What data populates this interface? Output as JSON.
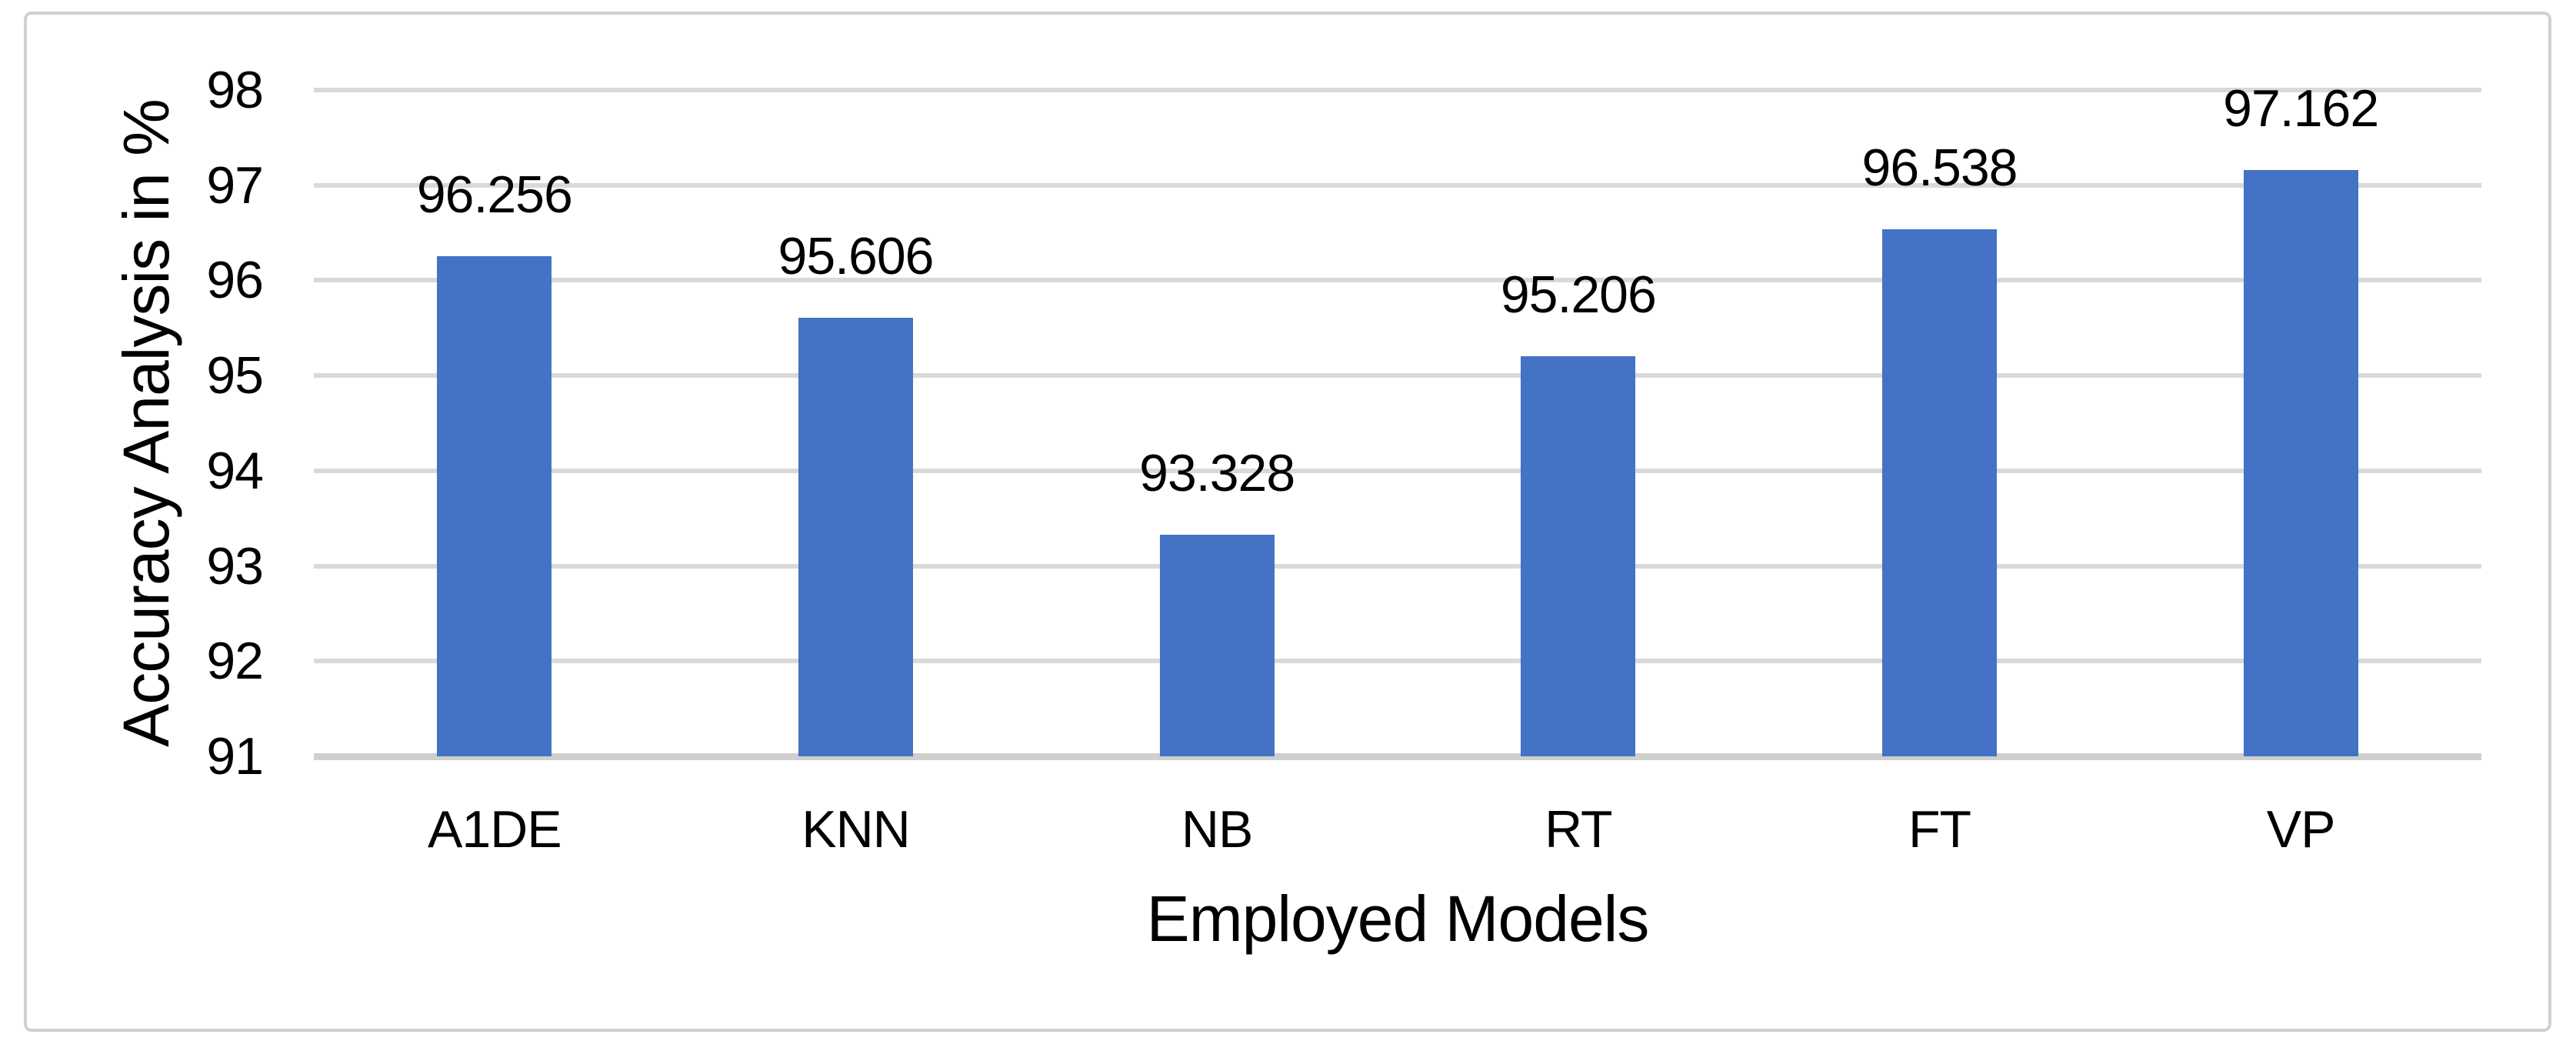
{
  "chart_data": {
    "type": "bar",
    "categories": [
      "A1DE",
      "KNN",
      "NB",
      "RT",
      "FT",
      "VP"
    ],
    "values": [
      96.256,
      95.606,
      93.328,
      95.206,
      96.538,
      97.162
    ],
    "data_labels": [
      "96.256",
      "95.606",
      "93.328",
      "95.206",
      "96.538",
      "97.162"
    ],
    "title": "",
    "xlabel": "Employed Models",
    "ylabel": "Accuracy Analysis in %",
    "ylim": [
      91,
      98
    ],
    "yticks": [
      91,
      92,
      93,
      94,
      95,
      96,
      97,
      98
    ],
    "grid": true,
    "legend": "none",
    "bar_color": "#4472C4",
    "gridline_color": "#D9D9D9",
    "axis_line_color": "#CFCFCF",
    "text_color": "#000000"
  }
}
